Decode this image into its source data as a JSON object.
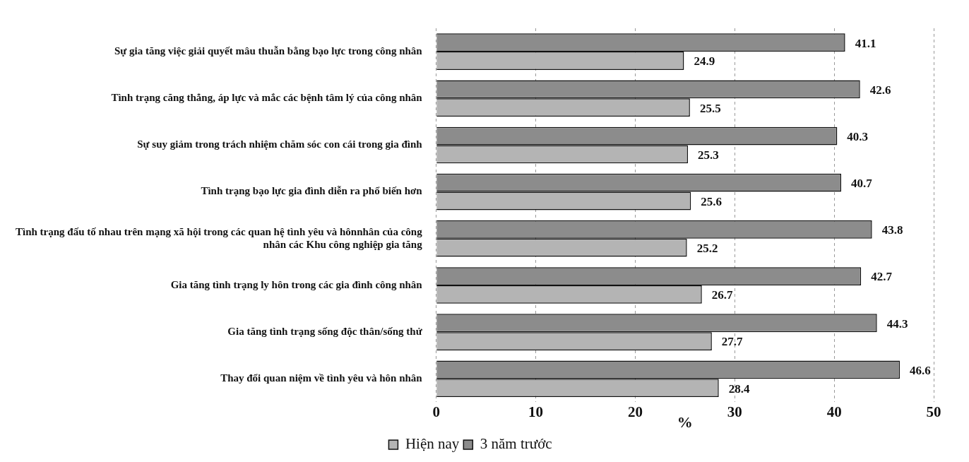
{
  "chart_data": {
    "type": "bar",
    "orientation": "horizontal",
    "xlabel": "%",
    "categories": [
      "Sự gia tăng việc giải quyết mâu thuẫn bằng bạo lực trong công nhân",
      "Tình trạng căng thẳng, áp lực và mắc các bệnh tâm lý của công nhân",
      "Sự suy giảm trong trách nhiệm chăm sóc con cái trong gia đình",
      "Tình trạng bạo lực gia đình diễn ra phổ biến hơn",
      "Tình trạng đấu tố nhau trên mạng xã hội trong các quan hệ tình yêu và hônnhân của công nhân các Khu công nghiệp gia tăng",
      "Gia tăng tình trạng ly hôn trong các gia đình công nhân",
      "Gia tăng tình trạng sống độc thân/sống thử",
      "Thay đổi quan niệm về tình yêu và hôn nhân"
    ],
    "series": [
      {
        "name": "Hiện nay",
        "color": "#b4b4b4",
        "values": [
          24.9,
          25.5,
          25.3,
          25.6,
          25.2,
          26.7,
          27.7,
          28.4
        ]
      },
      {
        "name": "3 năm trước",
        "color": "#8c8c8c",
        "values": [
          41.1,
          42.6,
          40.3,
          40.7,
          43.8,
          42.7,
          44.3,
          46.6
        ]
      }
    ],
    "xlim": [
      0,
      50
    ],
    "xticks": [
      0,
      10,
      20,
      30,
      40,
      50
    ],
    "grid": "x",
    "legend": "bottom",
    "data_labels": true
  }
}
